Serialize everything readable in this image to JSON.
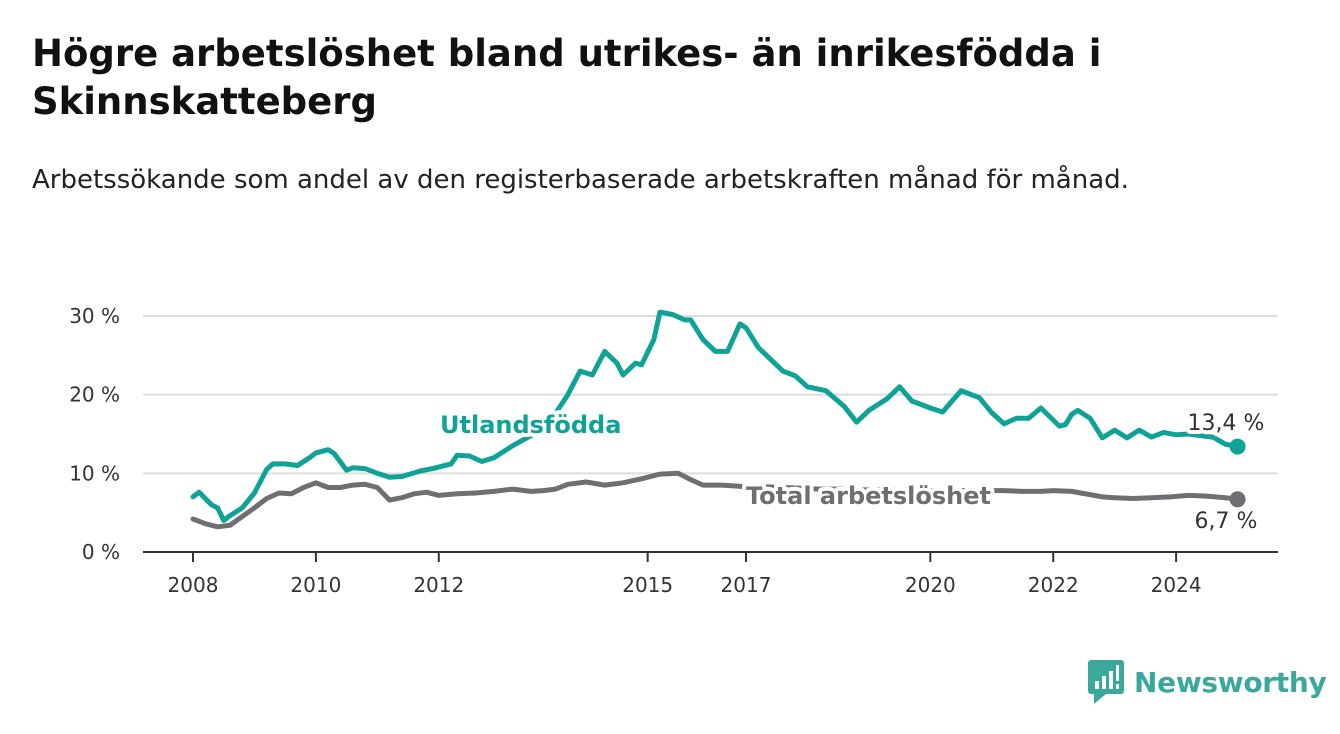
{
  "title": "Högre arbetslöshet bland utrikes- än inrikesfödda i Skinnskatteberg",
  "subtitle": "Arbetssökande som andel av den registerbaserade arbetskraften månad för månad.",
  "brand": "Newsworthy",
  "colors": {
    "foreign": "#0fa397",
    "total": "#6f6e73",
    "grid": "#dddddd",
    "axis": "#333333",
    "brand": "#3aa99b"
  },
  "chart_data": {
    "type": "line",
    "y_tick_labels": [
      "0 %",
      "10 %",
      "20 %",
      "30 %"
    ],
    "y_ticks": [
      0,
      10,
      20,
      30
    ],
    "ylim": [
      0,
      30
    ],
    "x_tick_labels": [
      "2008",
      "2010",
      "2012",
      "2015",
      "2017",
      "2020",
      "2022",
      "2024"
    ],
    "x_ticks": [
      2008,
      2010,
      2012,
      2015.4,
      2017,
      2020,
      2022,
      2024
    ],
    "xlim": [
      2008,
      2025.7
    ],
    "grid": true,
    "series": [
      {
        "name": "Utlandsfödda",
        "end_label": "13,4 %",
        "x": [
          2008.0,
          2008.1,
          2008.3,
          2008.4,
          2008.5,
          2008.6,
          2008.8,
          2009.0,
          2009.2,
          2009.3,
          2009.5,
          2009.7,
          2009.9,
          2010.0,
          2010.2,
          2010.3,
          2010.5,
          2010.6,
          2010.8,
          2011.0,
          2011.2,
          2011.4,
          2011.7,
          2011.9,
          2012.2,
          2012.3,
          2012.5,
          2012.7,
          2012.9,
          2013.2,
          2013.5,
          2013.7,
          2013.9,
          2014.1,
          2014.3,
          2014.5,
          2014.7,
          2014.9,
          2015.0,
          2015.2,
          2015.3,
          2015.5,
          2015.6,
          2015.8,
          2016.0,
          2016.1,
          2016.3,
          2016.5,
          2016.7,
          2016.9,
          2017.0,
          2017.2,
          2017.4,
          2017.6,
          2017.8,
          2018.0,
          2018.3,
          2018.6,
          2018.8,
          2019.0,
          2019.3,
          2019.5,
          2019.7,
          2020.0,
          2020.2,
          2020.5,
          2020.8,
          2021.0,
          2021.2,
          2021.4,
          2021.6,
          2021.8,
          2022.1,
          2022.2,
          2022.3,
          2022.4,
          2022.6,
          2022.8,
          2023.0,
          2023.2,
          2023.4,
          2023.6,
          2023.8,
          2024.0,
          2024.2,
          2024.4,
          2024.6,
          2024.8,
          2025.0
        ],
        "y": [
          7.0,
          7.6,
          6.0,
          5.6,
          4.0,
          4.6,
          5.6,
          7.5,
          10.5,
          11.2,
          11.2,
          11.0,
          12.0,
          12.6,
          13.0,
          12.5,
          10.4,
          10.7,
          10.6,
          10.0,
          9.5,
          9.6,
          10.3,
          10.6,
          11.2,
          12.3,
          12.2,
          11.5,
          12.0,
          13.5,
          14.8,
          15.6,
          17.6,
          20.0,
          23.0,
          22.5,
          25.5,
          24.0,
          22.5,
          24.0,
          23.8,
          27.0,
          30.5,
          30.2,
          29.5,
          29.5,
          27.0,
          25.5,
          25.5,
          29.0,
          28.5,
          26.0,
          24.5,
          23.0,
          22.4,
          21.0,
          20.5,
          18.5,
          16.5,
          18.0,
          19.5,
          21.0,
          19.2,
          18.3,
          17.8,
          20.5,
          19.6,
          17.7,
          16.3,
          17.0,
          17.0,
          18.3,
          16.0,
          16.2,
          17.5,
          18.0,
          17.0,
          14.5,
          15.5,
          14.5,
          15.5,
          14.6,
          15.2,
          14.9,
          15.0,
          14.8,
          14.6,
          13.7,
          13.4
        ]
      },
      {
        "name": "Total arbetslöshet",
        "end_label": "6,7 %",
        "x": [
          2008.0,
          2008.2,
          2008.4,
          2008.6,
          2008.8,
          2009.0,
          2009.2,
          2009.4,
          2009.6,
          2009.8,
          2010.0,
          2010.2,
          2010.4,
          2010.6,
          2010.8,
          2011.0,
          2011.2,
          2011.4,
          2011.6,
          2011.8,
          2012.0,
          2012.3,
          2012.6,
          2012.9,
          2013.2,
          2013.5,
          2013.7,
          2013.9,
          2014.1,
          2014.4,
          2014.7,
          2015.0,
          2015.3,
          2015.6,
          2015.9,
          2016.1,
          2016.3,
          2016.6,
          2016.8,
          2017.0,
          2017.3,
          2017.6,
          2017.9,
          2018.2,
          2018.5,
          2018.8,
          2019.1,
          2019.4,
          2019.7,
          2020.0,
          2020.3,
          2020.6,
          2020.9,
          2021.2,
          2021.5,
          2021.8,
          2022.0,
          2022.3,
          2022.6,
          2022.8,
          2023.0,
          2023.3,
          2023.6,
          2023.9,
          2024.2,
          2024.5,
          2024.8,
          2025.0
        ],
        "y": [
          4.2,
          3.6,
          3.2,
          3.4,
          4.5,
          5.6,
          6.8,
          7.5,
          7.4,
          8.2,
          8.8,
          8.2,
          8.2,
          8.5,
          8.6,
          8.2,
          6.6,
          6.9,
          7.4,
          7.6,
          7.2,
          7.4,
          7.5,
          7.7,
          8.0,
          7.7,
          7.8,
          8.0,
          8.6,
          8.9,
          8.5,
          8.8,
          9.3,
          9.9,
          10.0,
          9.2,
          8.5,
          8.5,
          8.4,
          8.3,
          8.3,
          8.2,
          8.1,
          8.0,
          8.0,
          7.9,
          7.9,
          7.9,
          7.8,
          7.8,
          7.8,
          7.8,
          7.8,
          7.8,
          7.7,
          7.7,
          7.8,
          7.7,
          7.3,
          7.0,
          6.9,
          6.8,
          6.9,
          7.0,
          7.2,
          7.1,
          6.9,
          6.7
        ]
      }
    ]
  }
}
